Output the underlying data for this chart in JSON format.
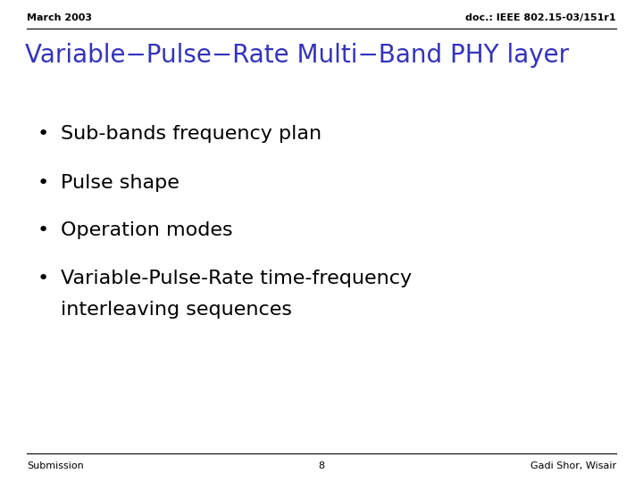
{
  "background_color": "#ffffff",
  "header_left": "March 2003",
  "header_right": "doc.: IEEE 802.15-03/151r1",
  "title": "Variable−Pulse−Rate Multi−Band PHY layer",
  "title_color": "#3333bb",
  "bullet_items": [
    "Sub-bands frequency plan",
    "Pulse shape",
    "Operation modes",
    "Variable-Pulse-Rate time-frequency"
  ],
  "bullet_item_last_line2": "interleaving sequences",
  "footer_left": "Submission",
  "footer_center": "8",
  "footer_right": "Gadi Shor, Wisair",
  "header_fontsize": 8,
  "title_fontsize": 20,
  "bullet_fontsize": 16,
  "footer_fontsize": 8
}
